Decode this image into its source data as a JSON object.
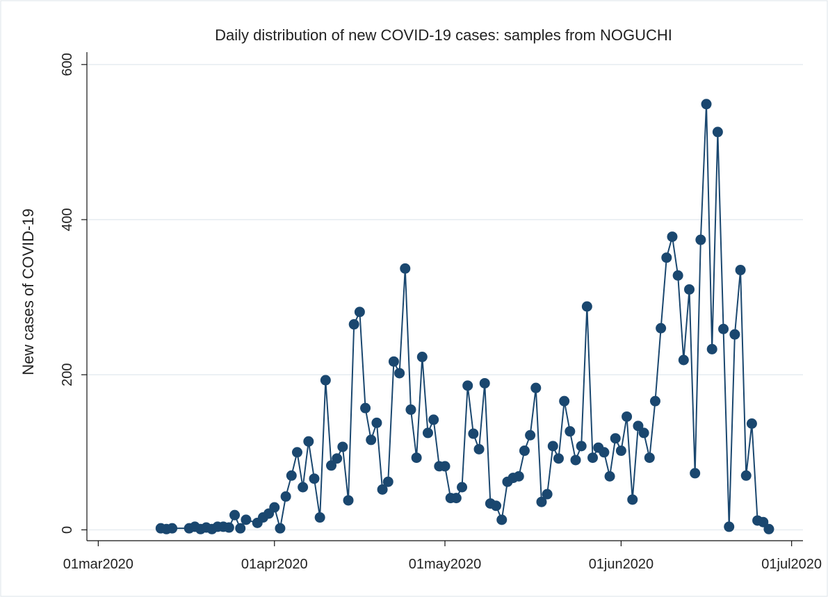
{
  "chart_data": {
    "type": "line",
    "title": "Daily distribution of new COVID-19 cases: samples from NOGUCHI",
    "y_label": "New cases of COVID-19",
    "color": "#1a476f",
    "grid": true,
    "markers": true,
    "x": [
      "2020-03-12",
      "2020-03-13",
      "2020-03-14",
      "2020-03-17",
      "2020-03-18",
      "2020-03-19",
      "2020-03-20",
      "2020-03-21",
      "2020-03-22",
      "2020-03-23",
      "2020-03-24",
      "2020-03-25",
      "2020-03-26",
      "2020-03-27",
      "2020-03-29",
      "2020-03-30",
      "2020-03-31",
      "2020-04-01",
      "2020-04-02",
      "2020-04-03",
      "2020-04-04",
      "2020-04-05",
      "2020-04-06",
      "2020-04-07",
      "2020-04-08",
      "2020-04-09",
      "2020-04-10",
      "2020-04-11",
      "2020-04-12",
      "2020-04-13",
      "2020-04-14",
      "2020-04-15",
      "2020-04-16",
      "2020-04-17",
      "2020-04-18",
      "2020-04-19",
      "2020-04-20",
      "2020-04-21",
      "2020-04-22",
      "2020-04-23",
      "2020-04-24",
      "2020-04-25",
      "2020-04-26",
      "2020-04-27",
      "2020-04-28",
      "2020-04-29",
      "2020-04-30",
      "2020-05-01",
      "2020-05-02",
      "2020-05-03",
      "2020-05-04",
      "2020-05-05",
      "2020-05-06",
      "2020-05-07",
      "2020-05-08",
      "2020-05-09",
      "2020-05-10",
      "2020-05-11",
      "2020-05-12",
      "2020-05-13",
      "2020-05-14",
      "2020-05-15",
      "2020-05-16",
      "2020-05-17",
      "2020-05-18",
      "2020-05-19",
      "2020-05-20",
      "2020-05-21",
      "2020-05-22",
      "2020-05-23",
      "2020-05-24",
      "2020-05-25",
      "2020-05-26",
      "2020-05-27",
      "2020-05-28",
      "2020-05-29",
      "2020-05-30",
      "2020-05-31",
      "2020-06-01",
      "2020-06-02",
      "2020-06-03",
      "2020-06-04",
      "2020-06-05",
      "2020-06-06",
      "2020-06-07",
      "2020-06-08",
      "2020-06-09",
      "2020-06-10",
      "2020-06-11",
      "2020-06-12",
      "2020-06-13",
      "2020-06-14",
      "2020-06-15",
      "2020-06-16",
      "2020-06-17",
      "2020-06-18",
      "2020-06-19",
      "2020-06-20",
      "2020-06-21",
      "2020-06-22",
      "2020-06-23",
      "2020-06-24",
      "2020-06-25",
      "2020-06-26",
      "2020-06-27"
    ],
    "values": [
      2,
      1,
      2,
      2,
      4,
      1,
      3,
      1,
      4,
      4,
      3,
      19,
      2,
      13,
      9,
      16,
      21,
      29,
      2,
      43,
      70,
      100,
      55,
      114,
      66,
      16,
      193,
      83,
      92,
      107,
      38,
      265,
      281,
      157,
      116,
      138,
      52,
      62,
      217,
      202,
      337,
      155,
      93,
      223,
      125,
      142,
      82,
      82,
      41,
      41,
      55,
      186,
      124,
      104,
      189,
      34,
      31,
      13,
      62,
      67,
      69,
      102,
      122,
      183,
      36,
      46,
      108,
      92,
      166,
      127,
      90,
      108,
      288,
      93,
      106,
      100,
      69,
      118,
      102,
      146,
      39,
      134,
      125,
      93,
      166,
      260,
      351,
      378,
      328,
      219,
      310,
      73,
      374,
      549,
      233,
      513,
      259,
      4,
      252,
      335,
      70,
      137,
      12,
      10,
      1
    ],
    "xlim": [
      "2020-02-28",
      "2020-07-03"
    ],
    "xticks": [
      {
        "value": "2020-03-01",
        "label": "01mar2020"
      },
      {
        "value": "2020-04-01",
        "label": "01apr2020"
      },
      {
        "value": "2020-05-01",
        "label": "01may2020"
      },
      {
        "value": "2020-06-01",
        "label": "01jun2020"
      },
      {
        "value": "2020-07-01",
        "label": "01jul2020"
      }
    ],
    "ylim": [
      -14,
      616
    ],
    "yticks": [
      0,
      200,
      400,
      600
    ]
  }
}
